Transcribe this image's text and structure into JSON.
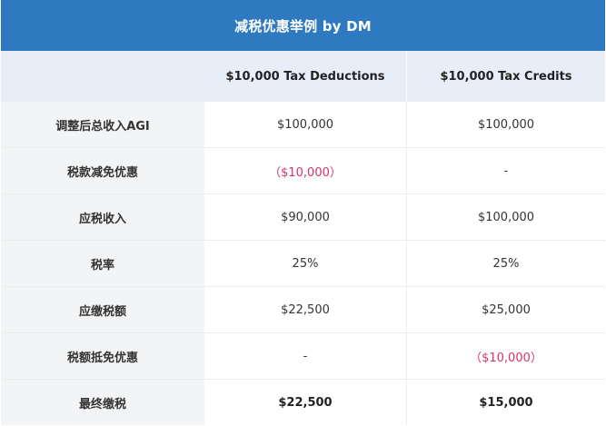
{
  "title": "减税优惠举例 by DM",
  "header": {
    "label": "",
    "col_a": "$10,000 Tax Deductions",
    "col_b": "$10,000 Tax Credits"
  },
  "rows": [
    {
      "label": "调整后总收入AGI",
      "a": "$100,000",
      "b": "$100,000"
    },
    {
      "label": "税款减免优惠",
      "a": "（$10,000）",
      "b": "-"
    },
    {
      "label": "应税收入",
      "a": "$90,000",
      "b": "$100,000"
    },
    {
      "label": "税率",
      "a": "25%",
      "b": "25%"
    },
    {
      "label": "应缴税额",
      "a": "$22,500",
      "b": "$25,000"
    },
    {
      "label": "税额抵免优惠",
      "a": "-",
      "b": "（$10,000）"
    },
    {
      "label": "最终缴税",
      "a": "$22,500",
      "b": "$15,000"
    }
  ],
  "colors": {
    "title_bg": "#2f79c0",
    "header_bg": "#e7eef8",
    "label_bg": "#f3f4f5",
    "negative": "#d6336c"
  }
}
